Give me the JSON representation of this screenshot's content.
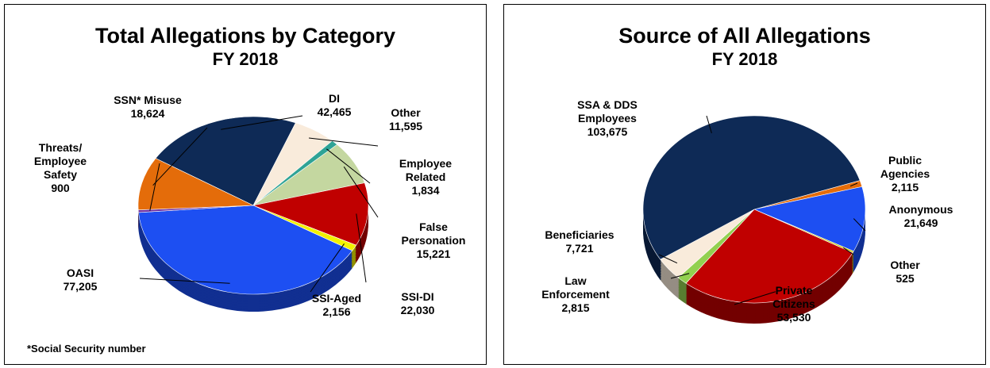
{
  "chart_data": [
    {
      "type": "pie",
      "title": "Total Allegations by Category",
      "subtitle": "FY 2018",
      "categories": [
        "DI",
        "Other",
        "Employee Related",
        "False Personation",
        "SSI-DI",
        "SSI-Aged",
        "OASI",
        "Threats/ Employee Safety",
        "SSN* Misuse"
      ],
      "values": [
        42465,
        11595,
        1834,
        15221,
        22030,
        2156,
        77205,
        900,
        18624
      ],
      "value_labels": [
        "42,465",
        "11,595",
        "1,834",
        "15,221",
        "22,030",
        "2,156",
        "77,205",
        "900",
        "18,624"
      ],
      "colors": [
        "#0e2a56",
        "#f9ebdb",
        "#2fa396",
        "#c4d7a0",
        "#c00000",
        "#f2f200",
        "#1d4ff2",
        "#7030a0",
        "#e46c0a"
      ],
      "footnote": "*Social Security number"
    },
    {
      "type": "pie",
      "title": "Source of All Allegations",
      "subtitle": "FY 2018",
      "categories": [
        "Public Agencies",
        "Anonymous",
        "Other",
        "Private Citizens",
        "Law Enforcement",
        "Beneficiaries",
        "SSA & DDS Employees"
      ],
      "values": [
        2115,
        21649,
        525,
        53530,
        2815,
        7721,
        103675
      ],
      "value_labels": [
        "2,115",
        "21,649",
        "525",
        "53,530",
        "2,815",
        "7,721",
        "103,675"
      ],
      "colors": [
        "#e46c0a",
        "#1d4ff2",
        "#c8c800",
        "#c00000",
        "#92d050",
        "#f9ebdb",
        "#0e2a56"
      ]
    }
  ]
}
